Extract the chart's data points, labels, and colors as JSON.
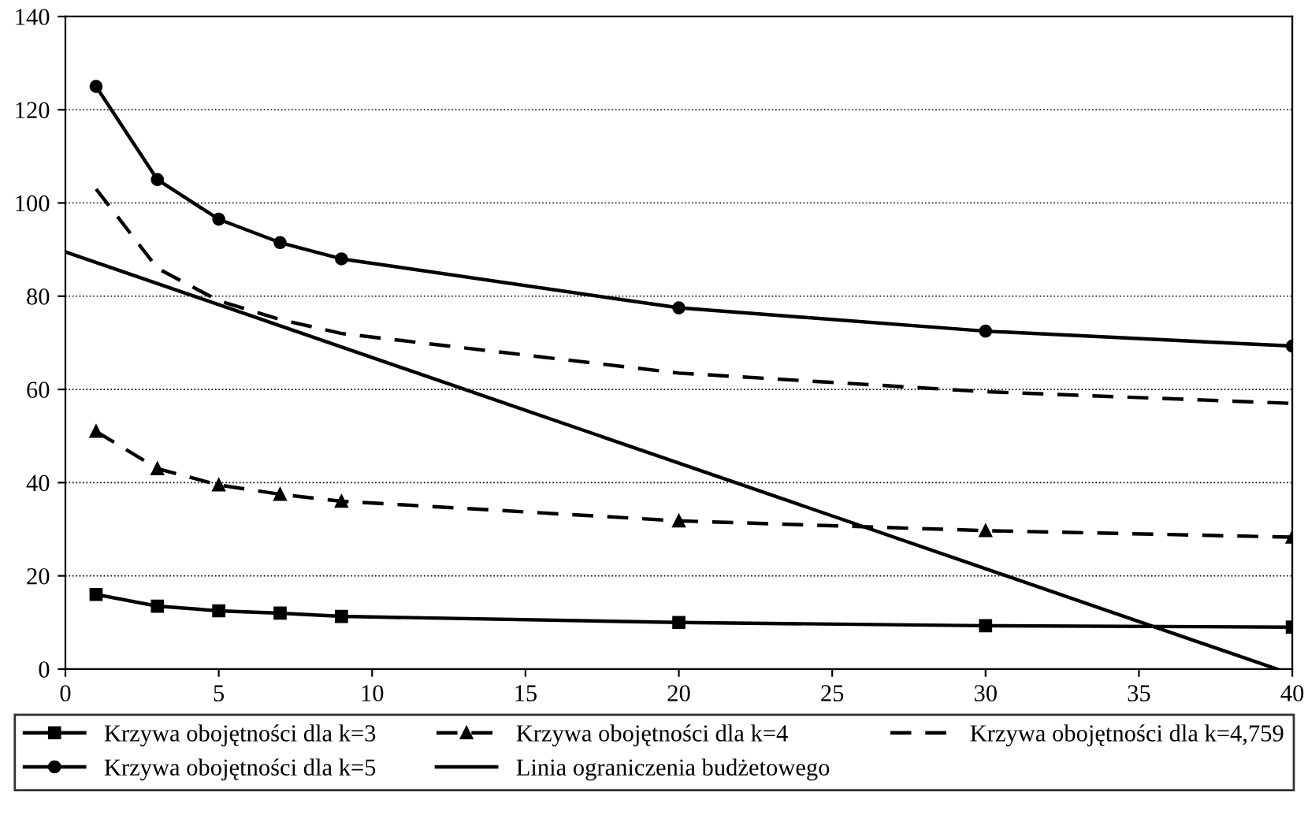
{
  "chart_data": {
    "type": "line",
    "x": [
      1,
      3,
      5,
      7,
      9,
      20,
      30,
      40
    ],
    "series": [
      {
        "name": "Krzywa obojętności dla k=3",
        "color": "#000000",
        "marker": "square",
        "line_style": "solid",
        "values": [
          16,
          13.5,
          12.5,
          12,
          11.3,
          10,
          9.3,
          9
        ]
      },
      {
        "name": "Krzywa obojętności dla k=4",
        "color": "#000000",
        "marker": "triangle",
        "line_style": "dashed",
        "values": [
          51,
          43,
          39.5,
          37.5,
          36,
          31.8,
          29.7,
          28.3
        ]
      },
      {
        "name": "Krzywa obojętności dla k=4,759",
        "color": "#000000",
        "marker": "none",
        "line_style": "dashed",
        "values": [
          103,
          86,
          79,
          75,
          72,
          63.5,
          59.5,
          57
        ]
      },
      {
        "name": "Krzywa obojętności dla k=5",
        "color": "#000000",
        "marker": "circle",
        "line_style": "solid",
        "values": [
          125,
          105,
          96.5,
          91.5,
          88,
          77.5,
          72.5,
          69.3
        ]
      },
      {
        "name": "Linia ograniczenia budżetowego",
        "color": "#000000",
        "marker": "none",
        "line_style": "solid",
        "x": [
          0,
          39.5
        ],
        "values": [
          89.5,
          0
        ]
      }
    ],
    "xlim": [
      0,
      40
    ],
    "xticks": [
      0,
      5,
      10,
      15,
      20,
      25,
      30,
      35,
      40
    ],
    "ylim": [
      0,
      140
    ],
    "yticks": [
      0,
      20,
      40,
      60,
      80,
      100,
      120,
      140
    ],
    "grid": "y",
    "legend": "bottom"
  }
}
